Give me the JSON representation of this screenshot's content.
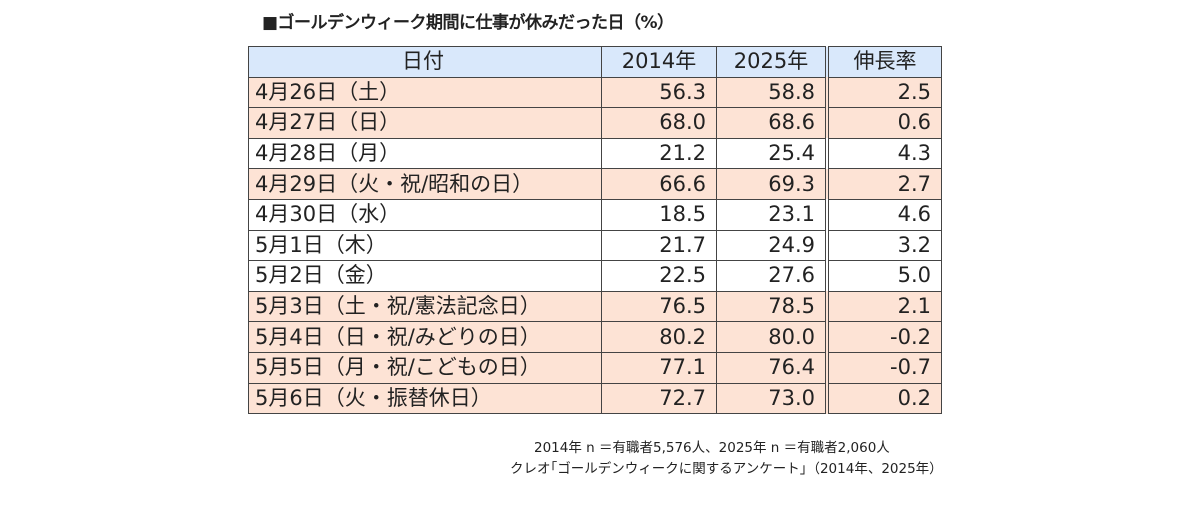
{
  "title": "■ゴールデンウィーク期間に仕事が休みだった日（%）",
  "colors": {
    "header_bg": "#d9e8fb",
    "highlight_row_bg": "#fde3d5",
    "plain_row_bg": "#ffffff"
  },
  "chart_data": {
    "type": "table",
    "title": "■ゴールデンウィーク期間に仕事が休みだった日（%）",
    "columns": [
      "日付",
      "2014年",
      "2025年",
      "伸長率"
    ],
    "rows": [
      {
        "date": "4月26日（土）",
        "y2014": "56.3",
        "y2025": "58.8",
        "growth": "2.5",
        "highlight": true
      },
      {
        "date": "4月27日（日）",
        "y2014": "68.0",
        "y2025": "68.6",
        "growth": "0.6",
        "highlight": true
      },
      {
        "date": "4月28日（月）",
        "y2014": "21.2",
        "y2025": "25.4",
        "growth": "4.3",
        "highlight": false
      },
      {
        "date": "4月29日（火・祝/昭和の日）",
        "y2014": "66.6",
        "y2025": "69.3",
        "growth": "2.7",
        "highlight": true
      },
      {
        "date": "4月30日（水）",
        "y2014": "18.5",
        "y2025": "23.1",
        "growth": "4.6",
        "highlight": false
      },
      {
        "date": "5月1日（木）",
        "y2014": "21.7",
        "y2025": "24.9",
        "growth": "3.2",
        "highlight": false
      },
      {
        "date": "5月2日（金）",
        "y2014": "22.5",
        "y2025": "27.6",
        "growth": "5.0",
        "highlight": false
      },
      {
        "date": "5月3日（土・祝/憲法記念日）",
        "y2014": "76.5",
        "y2025": "78.5",
        "growth": "2.1",
        "highlight": true
      },
      {
        "date": "5月4日（日・祝/みどりの日）",
        "y2014": "80.2",
        "y2025": "80.0",
        "growth": "-0.2",
        "highlight": true
      },
      {
        "date": "5月5日（月・祝/こどもの日）",
        "y2014": "77.1",
        "y2025": "76.4",
        "growth": "-0.7",
        "highlight": true
      },
      {
        "date": "5月6日（火・振替休日）",
        "y2014": "72.7",
        "y2025": "73.0",
        "growth": "0.2",
        "highlight": true
      }
    ]
  },
  "notes": {
    "sample": "2014年 n ＝有職者5,576人、2025年 n ＝有職者2,060人",
    "source": "クレオ｢ゴールデンウィークに関するアンケート｣（2014年、2025年）"
  }
}
